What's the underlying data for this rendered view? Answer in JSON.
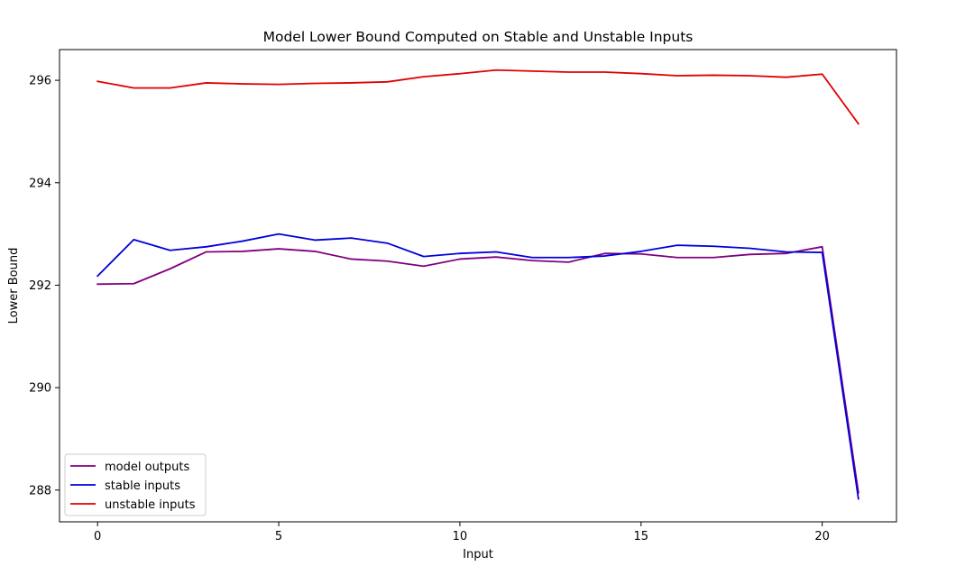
{
  "chart_data": {
    "type": "line",
    "title": "Model Lower Bound Computed on Stable and Unstable Inputs",
    "xlabel": "Input",
    "ylabel": "Lower Bound",
    "x": [
      0,
      1,
      2,
      3,
      4,
      5,
      6,
      7,
      8,
      9,
      10,
      11,
      12,
      13,
      14,
      15,
      16,
      17,
      18,
      19,
      20,
      21
    ],
    "xlim": [
      -1.05,
      22.05
    ],
    "ylim": [
      287.38,
      296.6
    ],
    "xticks": [
      0,
      5,
      10,
      15,
      20
    ],
    "yticks": [
      288,
      290,
      292,
      294,
      296
    ],
    "grid": false,
    "legend_position": "lower-left",
    "series": [
      {
        "name": "model outputs",
        "color": "#800080",
        "values": [
          292.02,
          292.03,
          292.32,
          292.65,
          292.66,
          292.71,
          292.66,
          292.51,
          292.47,
          292.37,
          292.51,
          292.55,
          292.48,
          292.45,
          292.62,
          292.61,
          292.54,
          292.54,
          292.6,
          292.62,
          292.75,
          287.95
        ]
      },
      {
        "name": "stable inputs",
        "color": "#0000dd",
        "values": [
          292.18,
          292.89,
          292.68,
          292.75,
          292.86,
          293.0,
          292.88,
          292.92,
          292.82,
          292.56,
          292.62,
          292.65,
          292.54,
          292.54,
          292.57,
          292.66,
          292.78,
          292.76,
          292.72,
          292.65,
          292.64,
          287.83
        ]
      },
      {
        "name": "unstable inputs",
        "color": "#e00000",
        "values": [
          295.98,
          295.85,
          295.85,
          295.95,
          295.93,
          295.92,
          295.94,
          295.95,
          295.97,
          296.07,
          296.13,
          296.2,
          296.18,
          296.16,
          296.16,
          296.13,
          296.09,
          296.1,
          296.09,
          296.06,
          296.12,
          295.15
        ]
      }
    ]
  }
}
